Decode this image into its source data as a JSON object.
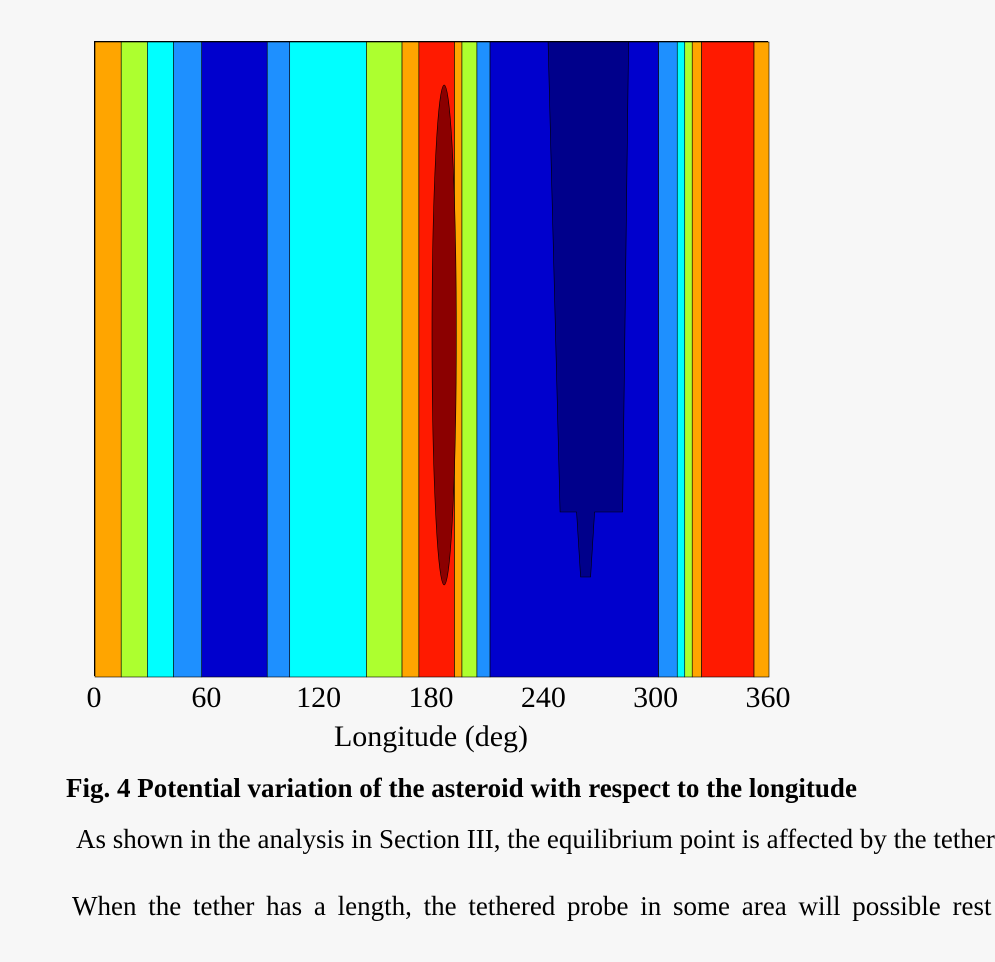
{
  "chart_data": {
    "type": "heatmap",
    "title": "",
    "xlabel": "Longitude (deg)",
    "ylabel": "",
    "xlim": [
      0,
      360
    ],
    "x_ticks": [
      "0",
      "60",
      "120",
      "180",
      "240",
      "300",
      "360"
    ],
    "colormap": "jet",
    "levels": [
      "#00008b",
      "#0000cd",
      "#1e90ff",
      "#00ffff",
      "#adff2f",
      "#ffa500",
      "#ff1a00",
      "#8b0000"
    ],
    "contour_bands": [
      {
        "x_start": 0,
        "x_end": 14,
        "level": "#ffa500"
      },
      {
        "x_start": 14,
        "x_end": 28,
        "level": "#adff2f"
      },
      {
        "x_start": 28,
        "x_end": 42,
        "level": "#00ffff"
      },
      {
        "x_start": 42,
        "x_end": 57,
        "level": "#1e90ff"
      },
      {
        "x_start": 57,
        "x_end": 92,
        "level": "#0000cd"
      },
      {
        "x_start": 92,
        "x_end": 104,
        "level": "#1e90ff"
      },
      {
        "x_start": 104,
        "x_end": 145,
        "level": "#00ffff"
      },
      {
        "x_start": 145,
        "x_end": 164,
        "level": "#adff2f"
      },
      {
        "x_start": 164,
        "x_end": 173,
        "level": "#ffa500"
      },
      {
        "x_start": 173,
        "x_end": 192,
        "level": "#ff1a00"
      },
      {
        "x_start": 192,
        "x_end": 196,
        "level": "#ffa500"
      },
      {
        "x_start": 196,
        "x_end": 204,
        "level": "#adff2f"
      },
      {
        "x_start": 204,
        "x_end": 211,
        "level": "#1e90ff"
      },
      {
        "x_start": 211,
        "x_end": 301,
        "level": "#0000cd"
      },
      {
        "x_start": 301,
        "x_end": 311,
        "level": "#1e90ff"
      },
      {
        "x_start": 311,
        "x_end": 315,
        "level": "#00ffff"
      },
      {
        "x_start": 315,
        "x_end": 319,
        "level": "#adff2f"
      },
      {
        "x_start": 319,
        "x_end": 324,
        "level": "#ffa500"
      },
      {
        "x_start": 324,
        "x_end": 352,
        "level": "#ff1a00"
      },
      {
        "x_start": 352,
        "x_end": 360,
        "level": "#ffa500"
      }
    ],
    "contour_islands": [
      {
        "x_start": 180,
        "x_end": 193,
        "level": "#8b0000"
      },
      {
        "x_start": 242,
        "x_end": 285,
        "level": "#00008b"
      }
    ]
  },
  "caption": "Fig. 4  Potential variation of the asteroid with respect to the longitude",
  "body_lines": [
    "As shown in the analysis in Section III, the equilibrium point is affected by the tether",
    "When the tether has a length, the tethered probe in some area will possible rest"
  ]
}
